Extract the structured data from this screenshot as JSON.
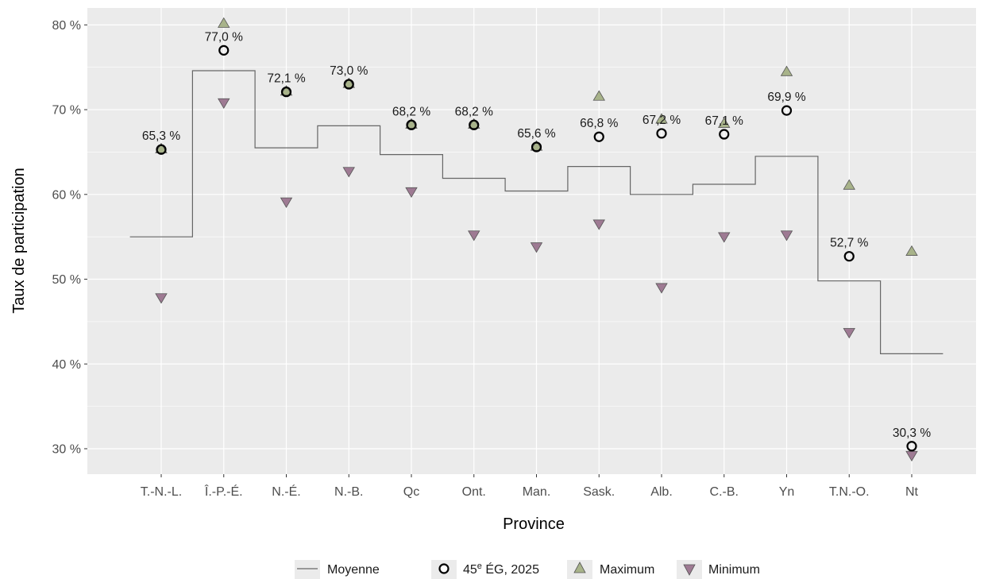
{
  "chart_data": {
    "type": "scatter",
    "xlabel": "Province",
    "ylabel": "Taux de participation",
    "categories": [
      "T.-N.-L.",
      "Î.-P.-É.",
      "N.-É.",
      "N.-B.",
      "Qc",
      "Ont.",
      "Man.",
      "Sask.",
      "Alb.",
      "C.-B.",
      "Yn",
      "T.N.-O.",
      "Nt"
    ],
    "ylim": [
      27,
      82
    ],
    "y_ticks": [
      30,
      40,
      50,
      60,
      70,
      80
    ],
    "y_tick_labels": [
      "30 %",
      "40 %",
      "50 %",
      "60 %",
      "70 %",
      "80 %"
    ],
    "grid": true,
    "legend_position": "bottom",
    "series": [
      {
        "name": "Moyenne",
        "type": "step",
        "color": "#666666",
        "values": [
          55.0,
          74.6,
          65.5,
          68.1,
          64.7,
          61.9,
          60.4,
          63.3,
          60.0,
          61.2,
          64.5,
          49.8,
          41.2
        ]
      },
      {
        "name": "45ᵉ ÉG, 2025",
        "type": "point",
        "marker": "circle-open",
        "color": "#000000",
        "values": [
          65.3,
          77.0,
          72.1,
          73.0,
          68.2,
          68.2,
          65.6,
          66.8,
          67.2,
          67.1,
          69.9,
          52.7,
          30.3
        ],
        "labels": [
          "65,3 %",
          "77,0 %",
          "72,1 %",
          "73,0 %",
          "68,2 %",
          "68,2 %",
          "65,6 %",
          "66,8 %",
          "67,2 %",
          "67,1 %",
          "69,9 %",
          "52,7 %",
          "30,3 %"
        ]
      },
      {
        "name": "Maximum",
        "type": "point",
        "marker": "triangle-up",
        "color": "#a8b38a",
        "values": [
          65.3,
          80.1,
          72.1,
          73.0,
          68.2,
          68.2,
          65.6,
          71.5,
          68.8,
          68.3,
          74.4,
          61.0,
          53.2
        ]
      },
      {
        "name": "Minimum",
        "type": "point",
        "marker": "triangle-down",
        "color": "#9e7a93",
        "values": [
          47.9,
          70.9,
          59.2,
          62.8,
          60.4,
          55.3,
          53.9,
          56.6,
          49.1,
          55.1,
          55.3,
          43.8,
          29.3
        ]
      }
    ]
  },
  "legend": {
    "items": [
      {
        "key": "line",
        "label": "Moyenne"
      },
      {
        "key": "circle",
        "label_main": "45",
        "label_sup": "e",
        "label_rest": " ÉG, 2025"
      },
      {
        "key": "triangle-up",
        "label": "Maximum"
      },
      {
        "key": "triangle-down",
        "label": "Minimum"
      }
    ]
  },
  "colors": {
    "panel_bg": "#ebebeb",
    "grid": "#ffffff",
    "average_line": "#666666",
    "max_fill": "#a8b38a",
    "min_fill": "#9e7a93"
  }
}
